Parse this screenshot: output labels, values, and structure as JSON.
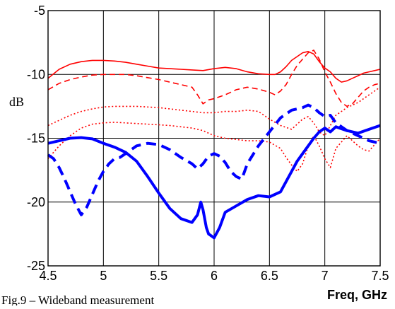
{
  "chart_data": {
    "type": "line",
    "title": "",
    "xlabel": "Freq, GHz",
    "ylabel": "dB",
    "xlim": [
      4.5,
      7.5
    ],
    "ylim": [
      -25,
      -5
    ],
    "xticks": [
      4.5,
      5,
      5.5,
      6,
      6.5,
      7,
      7.5
    ],
    "yticks": [
      -5,
      -10,
      -15,
      -20,
      -25
    ],
    "xtick_labels": [
      "4.5",
      "5",
      "5.5",
      "6",
      "6.5",
      "7",
      "7.5"
    ],
    "ytick_labels": [
      "-5",
      "-10",
      "-15",
      "-20",
      "-25"
    ],
    "grid": true,
    "legend": "none",
    "caption": "Fig.9 – Wideband measurement",
    "series": [
      {
        "color": "#ff0000",
        "style": "solid",
        "weight": "thin",
        "x": [
          4.5,
          4.6,
          4.7,
          4.8,
          4.9,
          5.0,
          5.1,
          5.2,
          5.3,
          5.4,
          5.5,
          5.6,
          5.7,
          5.8,
          5.9,
          6.0,
          6.1,
          6.2,
          6.3,
          6.4,
          6.5,
          6.55,
          6.6,
          6.65,
          6.7,
          6.75,
          6.8,
          6.85,
          6.9,
          6.95,
          7.0,
          7.05,
          7.1,
          7.15,
          7.2,
          7.25,
          7.3,
          7.35,
          7.4,
          7.45,
          7.5
        ],
        "y": [
          -10.3,
          -9.6,
          -9.2,
          -9.0,
          -8.9,
          -8.9,
          -8.95,
          -9.05,
          -9.2,
          -9.35,
          -9.5,
          -9.55,
          -9.6,
          -9.65,
          -9.7,
          -9.55,
          -9.45,
          -9.55,
          -9.8,
          -9.95,
          -10.0,
          -10.0,
          -9.8,
          -9.4,
          -8.9,
          -8.6,
          -8.3,
          -8.2,
          -8.4,
          -9.0,
          -9.5,
          -9.8,
          -10.3,
          -10.6,
          -10.5,
          -10.3,
          -10.1,
          -9.9,
          -9.8,
          -9.7,
          -9.6
        ]
      },
      {
        "color": "#ff0000",
        "style": "dashed",
        "weight": "thin",
        "x": [
          4.5,
          4.6,
          4.7,
          4.8,
          4.9,
          5.0,
          5.1,
          5.2,
          5.3,
          5.4,
          5.5,
          5.6,
          5.7,
          5.8,
          5.85,
          5.9,
          5.95,
          6.0,
          6.1,
          6.2,
          6.3,
          6.4,
          6.5,
          6.55,
          6.6,
          6.65,
          6.7,
          6.75,
          6.8,
          6.85,
          6.9,
          6.95,
          7.0,
          7.05,
          7.1,
          7.15,
          7.2,
          7.25,
          7.3,
          7.35,
          7.4,
          7.45,
          7.5
        ],
        "y": [
          -11.2,
          -10.7,
          -10.4,
          -10.2,
          -10.05,
          -10.0,
          -10.0,
          -10.0,
          -10.1,
          -10.25,
          -10.4,
          -10.6,
          -10.8,
          -11.0,
          -11.6,
          -12.3,
          -12.0,
          -11.9,
          -11.6,
          -11.2,
          -11.0,
          -11.15,
          -11.4,
          -11.6,
          -11.3,
          -10.8,
          -10.0,
          -9.3,
          -8.8,
          -8.3,
          -8.1,
          -8.8,
          -9.8,
          -10.6,
          -11.5,
          -12.2,
          -12.5,
          -12.3,
          -11.8,
          -11.3,
          -11.0,
          -10.8,
          -10.7
        ]
      },
      {
        "color": "#ff0000",
        "style": "dotted",
        "weight": "thin",
        "x": [
          4.5,
          4.6,
          4.7,
          4.8,
          4.9,
          5.0,
          5.1,
          5.2,
          5.3,
          5.4,
          5.5,
          5.6,
          5.7,
          5.8,
          5.9,
          6.0,
          6.1,
          6.2,
          6.3,
          6.4,
          6.5,
          6.6,
          6.7,
          6.8,
          6.85,
          6.9,
          6.95,
          7.0,
          7.05,
          7.1,
          7.2,
          7.3,
          7.4,
          7.5
        ],
        "y": [
          -14.0,
          -13.6,
          -13.2,
          -12.9,
          -12.7,
          -12.55,
          -12.5,
          -12.5,
          -12.5,
          -12.55,
          -12.6,
          -12.7,
          -12.8,
          -12.9,
          -13.0,
          -13.0,
          -12.9,
          -12.9,
          -12.8,
          -12.9,
          -13.5,
          -14.0,
          -14.3,
          -13.5,
          -13.3,
          -13.8,
          -14.5,
          -14.8,
          -14.0,
          -13.2,
          -12.6,
          -12.2,
          -11.6,
          -11.0
        ]
      },
      {
        "color": "#ff0000",
        "style": "dotted",
        "weight": "thin",
        "x": [
          4.5,
          4.6,
          4.7,
          4.8,
          4.9,
          5.0,
          5.1,
          5.2,
          5.3,
          5.4,
          5.5,
          5.6,
          5.7,
          5.8,
          5.9,
          6.0,
          6.1,
          6.2,
          6.3,
          6.4,
          6.5,
          6.6,
          6.65,
          6.7,
          6.75,
          6.8,
          6.85,
          6.9,
          6.95,
          7.0,
          7.05,
          7.1,
          7.2,
          7.3,
          7.35,
          7.4,
          7.5
        ],
        "y": [
          -16.6,
          -15.6,
          -14.8,
          -14.2,
          -13.9,
          -13.8,
          -13.75,
          -13.8,
          -13.85,
          -13.9,
          -13.95,
          -14.0,
          -14.1,
          -14.2,
          -14.4,
          -14.8,
          -15.0,
          -15.1,
          -15.2,
          -15.2,
          -15.3,
          -15.8,
          -16.5,
          -17.1,
          -17.6,
          -17.0,
          -15.6,
          -14.8,
          -15.6,
          -16.6,
          -17.3,
          -15.8,
          -14.8,
          -15.6,
          -15.9,
          -16.0,
          -15.0
        ]
      },
      {
        "color": "#0000ff",
        "style": "solid",
        "weight": "thick",
        "x": [
          4.5,
          4.6,
          4.7,
          4.8,
          4.9,
          5.0,
          5.1,
          5.2,
          5.3,
          5.4,
          5.5,
          5.6,
          5.7,
          5.8,
          5.85,
          5.88,
          5.9,
          5.93,
          5.95,
          6.0,
          6.05,
          6.1,
          6.2,
          6.3,
          6.4,
          6.5,
          6.6,
          6.65,
          6.7,
          6.75,
          6.8,
          6.85,
          6.9,
          6.95,
          7.0,
          7.05,
          7.1,
          7.2,
          7.3,
          7.4,
          7.5
        ],
        "y": [
          -15.4,
          -15.2,
          -15.0,
          -14.95,
          -15.05,
          -15.4,
          -15.7,
          -16.1,
          -16.8,
          -18.0,
          -19.3,
          -20.5,
          -21.3,
          -21.6,
          -21.0,
          -20.0,
          -20.6,
          -22.0,
          -22.5,
          -22.8,
          -22.0,
          -20.8,
          -20.3,
          -19.8,
          -19.5,
          -19.6,
          -19.2,
          -18.4,
          -17.6,
          -16.8,
          -16.2,
          -15.6,
          -15.0,
          -14.5,
          -14.2,
          -14.5,
          -14.1,
          -14.4,
          -14.6,
          -14.3,
          -14.0
        ]
      },
      {
        "color": "#0000ff",
        "style": "dashed",
        "weight": "thick",
        "x": [
          4.5,
          4.55,
          4.6,
          4.65,
          4.7,
          4.75,
          4.8,
          4.85,
          4.9,
          4.95,
          5.0,
          5.05,
          5.1,
          5.15,
          5.2,
          5.3,
          5.4,
          5.5,
          5.6,
          5.7,
          5.8,
          5.85,
          5.9,
          5.95,
          6.0,
          6.05,
          6.1,
          6.15,
          6.2,
          6.25,
          6.3,
          6.4,
          6.5,
          6.6,
          6.7,
          6.8,
          6.85,
          6.9,
          6.95,
          7.0,
          7.05,
          7.1,
          7.2,
          7.3,
          7.4,
          7.5
        ],
        "y": [
          -16.3,
          -16.6,
          -17.3,
          -18.2,
          -19.2,
          -20.2,
          -21.0,
          -20.4,
          -19.4,
          -18.4,
          -17.6,
          -17.0,
          -16.6,
          -16.5,
          -16.2,
          -15.6,
          -15.4,
          -15.5,
          -15.9,
          -16.5,
          -17.0,
          -17.4,
          -17.0,
          -16.4,
          -16.2,
          -16.4,
          -16.9,
          -17.6,
          -18.0,
          -18.2,
          -17.0,
          -15.6,
          -14.5,
          -13.4,
          -12.8,
          -12.6,
          -12.4,
          -12.6,
          -13.0,
          -13.3,
          -13.2,
          -13.8,
          -14.4,
          -14.8,
          -15.2,
          -15.4
        ]
      }
    ]
  }
}
